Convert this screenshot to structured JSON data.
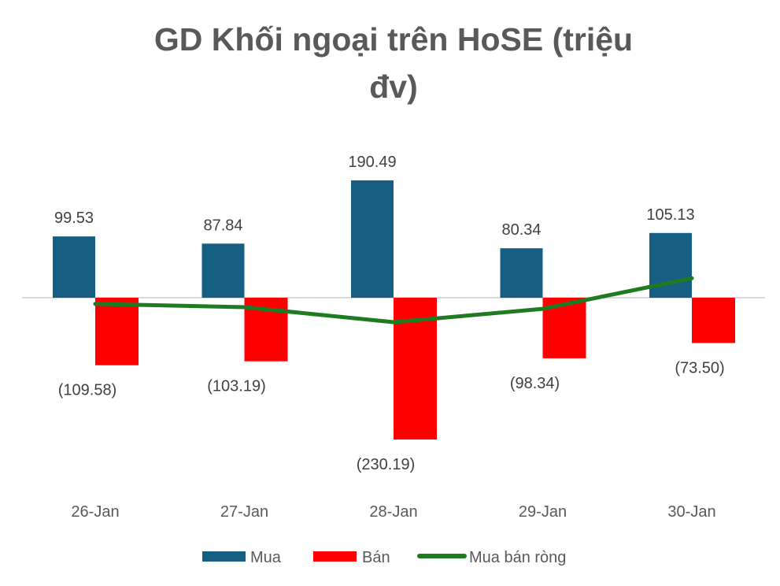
{
  "chart_data": {
    "type": "bar",
    "title": "GD Khối ngoại trên HoSE (triệu đv)",
    "title_lines": [
      "GD Khối ngoại trên HoSE (triệu",
      "đv)"
    ],
    "categories": [
      "26-Jan",
      "27-Jan",
      "28-Jan",
      "29-Jan",
      "30-Jan"
    ],
    "series": [
      {
        "name": "Mua",
        "type": "bar",
        "color": "#156082",
        "values": [
          99.53,
          87.84,
          190.49,
          80.34,
          105.13
        ],
        "labels": [
          "99.53",
          "87.84",
          "190.49",
          "80.34",
          "105.13"
        ]
      },
      {
        "name": "Bán",
        "type": "bar",
        "color": "#FF0000",
        "values": [
          -109.58,
          -103.19,
          -230.19,
          -98.34,
          -73.5
        ],
        "labels": [
          "(109.58)",
          "(103.19)",
          "(230.19)",
          "(98.34)",
          "(73.50)"
        ]
      },
      {
        "name": "Mua bán ròng",
        "type": "line",
        "color": "#1E7B22",
        "values": [
          -10.05,
          -15.35,
          -39.7,
          -18.0,
          31.63
        ]
      }
    ],
    "ylim": [
      -240,
      200
    ],
    "grid": false,
    "legend": "bottom",
    "xlabel": "",
    "ylabel": ""
  }
}
